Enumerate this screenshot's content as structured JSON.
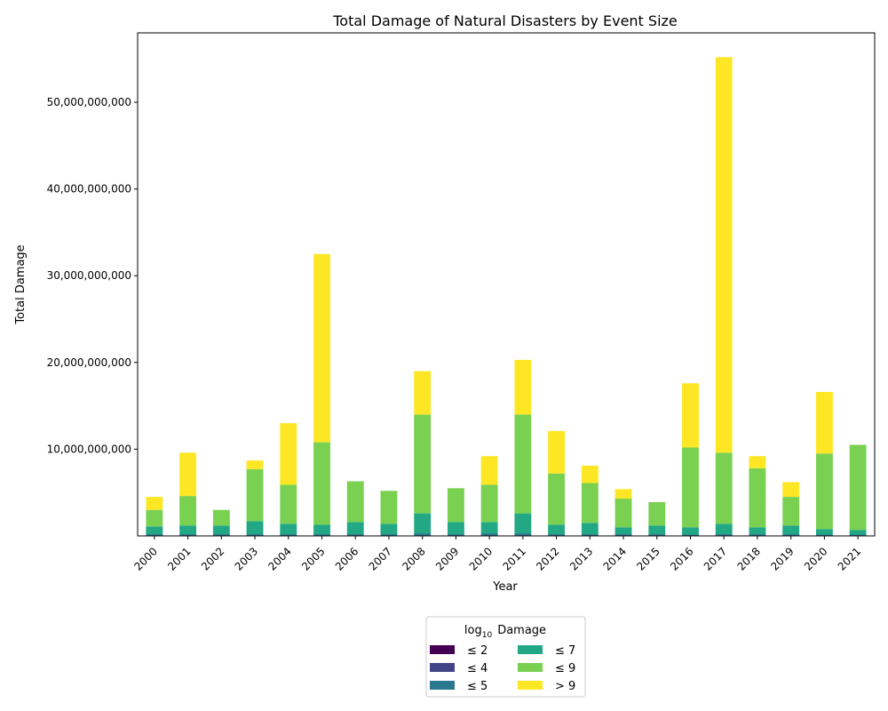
{
  "chart_data": {
    "type": "bar",
    "stacked": true,
    "title": "Total Damage of Natural Disasters by Event Size",
    "xlabel": "Year",
    "ylabel": "Total Damage",
    "categories": [
      "2000",
      "2001",
      "2002",
      "2003",
      "2004",
      "2005",
      "2006",
      "2007",
      "2008",
      "2009",
      "2010",
      "2011",
      "2012",
      "2013",
      "2014",
      "2015",
      "2016",
      "2017",
      "2018",
      "2019",
      "2020",
      "2021"
    ],
    "ylim": [
      0,
      58000000000
    ],
    "yticks": [
      {
        "value": 10000000000,
        "label": "10,000,000,000"
      },
      {
        "value": 20000000000,
        "label": "20,000,000,000"
      },
      {
        "value": 30000000000,
        "label": "30,000,000,000"
      },
      {
        "value": 40000000000,
        "label": "40,000,000,000"
      },
      {
        "value": 50000000000,
        "label": "50,000,000,000"
      }
    ],
    "legend": {
      "title_base": "log",
      "title_sub": "10",
      "title_rest": "Damage",
      "placement": "below plot, center"
    },
    "series": [
      {
        "name": "≤ 2",
        "color": "#440154",
        "values": [
          0,
          0,
          0,
          0,
          0,
          0,
          0,
          0,
          0,
          0,
          0,
          0,
          0,
          0,
          0,
          0,
          0,
          0,
          0,
          0,
          0,
          0
        ]
      },
      {
        "name": "≤ 4",
        "color": "#414487",
        "values": [
          0,
          0,
          0,
          0,
          0,
          0,
          0,
          0,
          0,
          0,
          0,
          0,
          0,
          0,
          0,
          0,
          0,
          0,
          0,
          0,
          0,
          0
        ]
      },
      {
        "name": "≤ 5",
        "color": "#2a788e",
        "values": [
          200000000,
          200000000,
          200000000,
          200000000,
          200000000,
          200000000,
          200000000,
          200000000,
          300000000,
          200000000,
          300000000,
          300000000,
          200000000,
          200000000,
          200000000,
          200000000,
          150000000,
          200000000,
          200000000,
          200000000,
          150000000,
          150000000
        ]
      },
      {
        "name": "≤ 7",
        "color": "#22a884",
        "values": [
          900000000,
          1000000000,
          1000000000,
          1500000000,
          1200000000,
          1100000000,
          1400000000,
          1200000000,
          2300000000,
          1400000000,
          1300000000,
          2300000000,
          1100000000,
          1300000000,
          800000000,
          1000000000,
          850000000,
          1200000000,
          800000000,
          1000000000,
          650000000,
          550000000
        ]
      },
      {
        "name": "≤ 9",
        "color": "#7ad151",
        "values": [
          1900000000,
          3400000000,
          1800000000,
          6000000000,
          4500000000,
          9500000000,
          4700000000,
          3800000000,
          11400000000,
          3900000000,
          4300000000,
          11400000000,
          5900000000,
          4600000000,
          3300000000,
          2700000000,
          9200000000,
          8200000000,
          6800000000,
          3300000000,
          8700000000,
          9800000000
        ]
      },
      {
        "name": "> 9",
        "color": "#fde725",
        "values": [
          1500000000,
          5000000000,
          0,
          1000000000,
          7100000000,
          21700000000,
          0,
          0,
          5000000000,
          0,
          3300000000,
          6300000000,
          4900000000,
          2000000000,
          1100000000,
          0,
          7400000000,
          45600000000,
          1400000000,
          1700000000,
          7100000000,
          0
        ]
      }
    ]
  }
}
